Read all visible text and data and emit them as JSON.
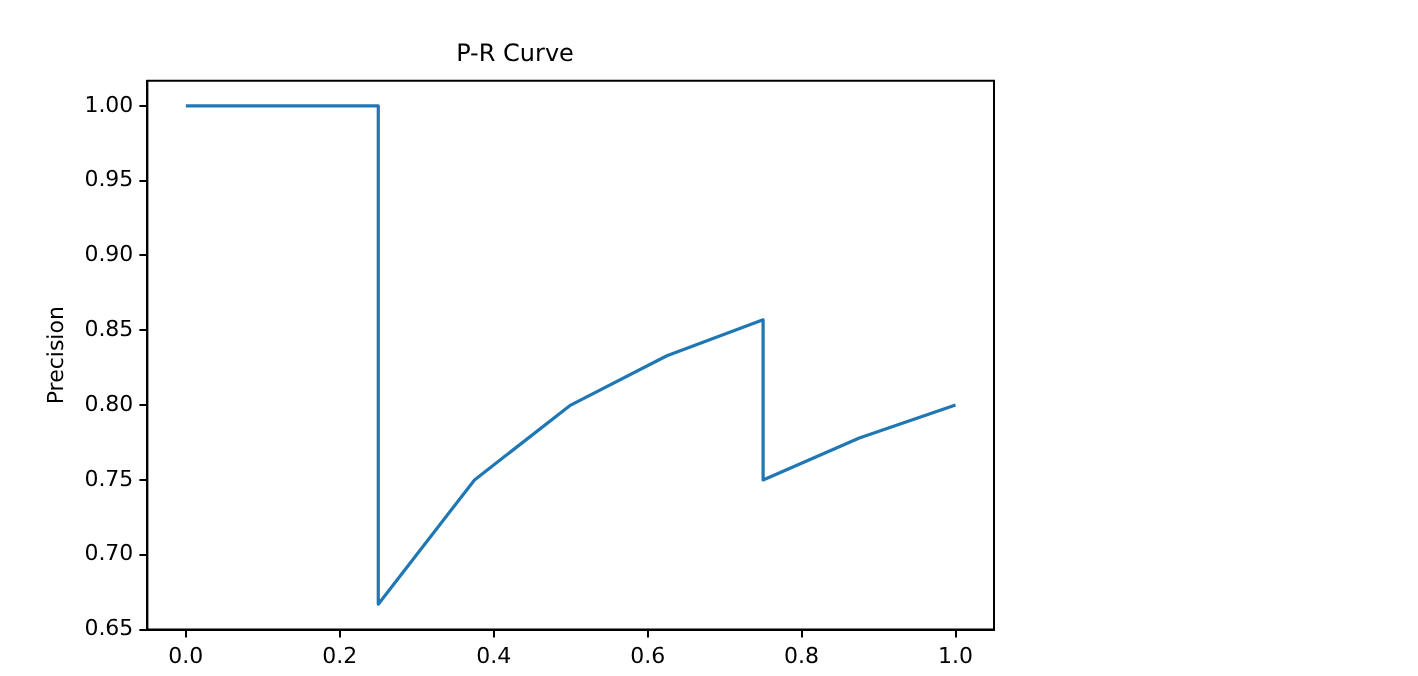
{
  "chart_data": {
    "type": "line",
    "title": "P-R Curve",
    "ylabel": "Precision",
    "series": [
      {
        "color": "#1f77b4",
        "x": [
          0,
          0.25,
          0.25,
          0.375,
          0.5,
          0.625,
          0.75,
          0.75,
          0.875,
          1.0
        ],
        "values": [
          1.0,
          1.0,
          0.667,
          0.75,
          0.8,
          0.833,
          0.857,
          0.75,
          0.778,
          0.8
        ]
      }
    ],
    "xlim": [
      -0.05,
      1.05
    ],
    "xticks": [
      {
        "value": 0,
        "label": "0.0"
      },
      {
        "value": 0.2,
        "label": "0.2"
      },
      {
        "value": 0.4,
        "label": "0.4"
      },
      {
        "value": 0.6,
        "label": "0.6"
      },
      {
        "value": 0.8,
        "label": "0.8"
      },
      {
        "value": 1,
        "label": "1.0"
      }
    ],
    "ylim": [
      0.65,
      1.0167
    ],
    "yticks": [
      {
        "value": 0.65,
        "label": "0.65"
      },
      {
        "value": 0.7,
        "label": "0.70"
      },
      {
        "value": 0.75,
        "label": "0.75"
      },
      {
        "value": 0.8,
        "label": "0.80"
      },
      {
        "value": 0.85,
        "label": "0.85"
      },
      {
        "value": 0.9,
        "label": "0.90"
      },
      {
        "value": 0.95,
        "label": "0.95"
      },
      {
        "value": 1.0,
        "label": "1.00"
      }
    ],
    "grid": false,
    "legend": false,
    "marker": "none",
    "line_style": "solid"
  }
}
